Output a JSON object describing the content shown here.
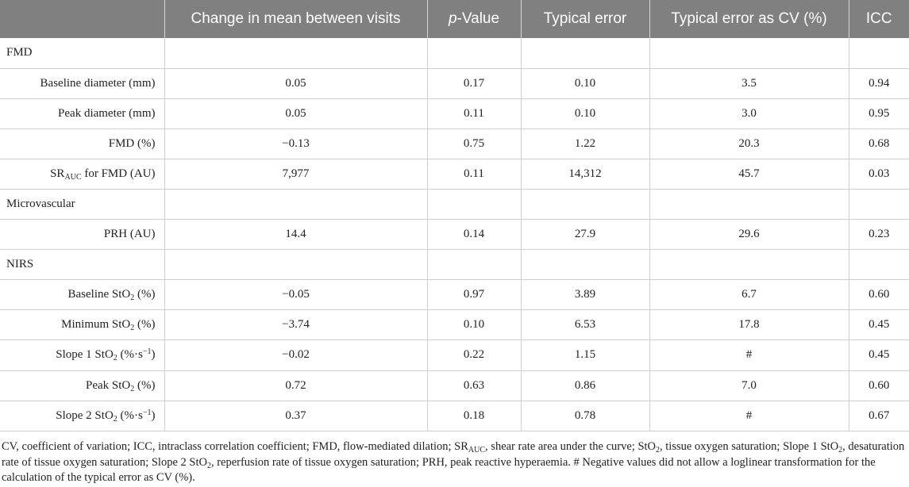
{
  "header": {
    "col0": "",
    "col1": "Change in mean between visits",
    "col2_italic": "p",
    "col2_rest": "-Value",
    "col3": "Typical error",
    "col4": "Typical error as CV (%)",
    "col5": "ICC"
  },
  "sections": {
    "fmd": "FMD",
    "micro": "Microvascular",
    "nirs": "NIRS"
  },
  "rows": {
    "baseline_diameter": {
      "label": "Baseline diameter (mm)",
      "change": "0.05",
      "p": "0.17",
      "te": "0.10",
      "cv": "3.5",
      "icc": "0.94"
    },
    "peak_diameter": {
      "label": "Peak diameter (mm)",
      "change": "0.05",
      "p": "0.11",
      "te": "0.10",
      "cv": "3.0",
      "icc": "0.95"
    },
    "fmd_pct": {
      "label": "FMD (%)",
      "change": "−0.13",
      "p": "0.75",
      "te": "1.22",
      "cv": "20.3",
      "icc": "0.68"
    },
    "sr_auc": {
      "label_pre": "SR",
      "label_sub": "AUC",
      "label_post": " for FMD (AU)",
      "change": "7,977",
      "p": "0.11",
      "te": "14,312",
      "cv": "45.7",
      "icc": "0.03"
    },
    "prh": {
      "label": "PRH (AU)",
      "change": "14.4",
      "p": "0.14",
      "te": "27.9",
      "cv": "29.6",
      "icc": "0.23"
    },
    "baseline_sto2": {
      "label_pre": "Baseline StO",
      "label_sub": "2",
      "label_post": " (%)",
      "change": "−0.05",
      "p": "0.97",
      "te": "3.89",
      "cv": "6.7",
      "icc": "0.60"
    },
    "minimum_sto2": {
      "label_pre": "Minimum StO",
      "label_sub": "2",
      "label_post": " (%)",
      "change": "−3.74",
      "p": "0.10",
      "te": "6.53",
      "cv": "17.8",
      "icc": "0.45"
    },
    "slope1_sto2": {
      "label_pre": "Slope 1 StO",
      "label_sub": "2",
      "label_mid": " (%·s",
      "label_sup": "−1",
      "label_post": ")",
      "change": "−0.02",
      "p": "0.22",
      "te": "1.15",
      "cv": "#",
      "icc": "0.45"
    },
    "peak_sto2": {
      "label_pre": "Peak StO",
      "label_sub": "2",
      "label_post": " (%)",
      "change": "0.72",
      "p": "0.63",
      "te": "0.86",
      "cv": "7.0",
      "icc": "0.60"
    },
    "slope2_sto2": {
      "label_pre": "Slope 2 StO",
      "label_sub": "2",
      "label_mid": " (%·s",
      "label_sup": "−1",
      "label_post": ")",
      "change": "0.37",
      "p": "0.18",
      "te": "0.78",
      "cv": "#",
      "icc": "0.67"
    }
  },
  "footnote": {
    "t1": "CV, coefficient of variation; ICC, intraclass correlation coefficient; FMD, flow-mediated dilation; SR",
    "t1_sub": "AUC",
    "t2": ", shear rate area under the curve; StO",
    "t2_sub": "2",
    "t3": ", tissue oxygen saturation; Slope 1 StO",
    "t3_sub": "2",
    "t4": ", desaturation rate of tissue oxygen saturation; Slope 2 StO",
    "t4_sub": "2",
    "t5": ", reperfusion rate of tissue oxygen saturation; PRH, peak reactive hyperaemia. # Negative values did not allow a loglinear transformation for the calculation of the typical error as CV (%)."
  }
}
